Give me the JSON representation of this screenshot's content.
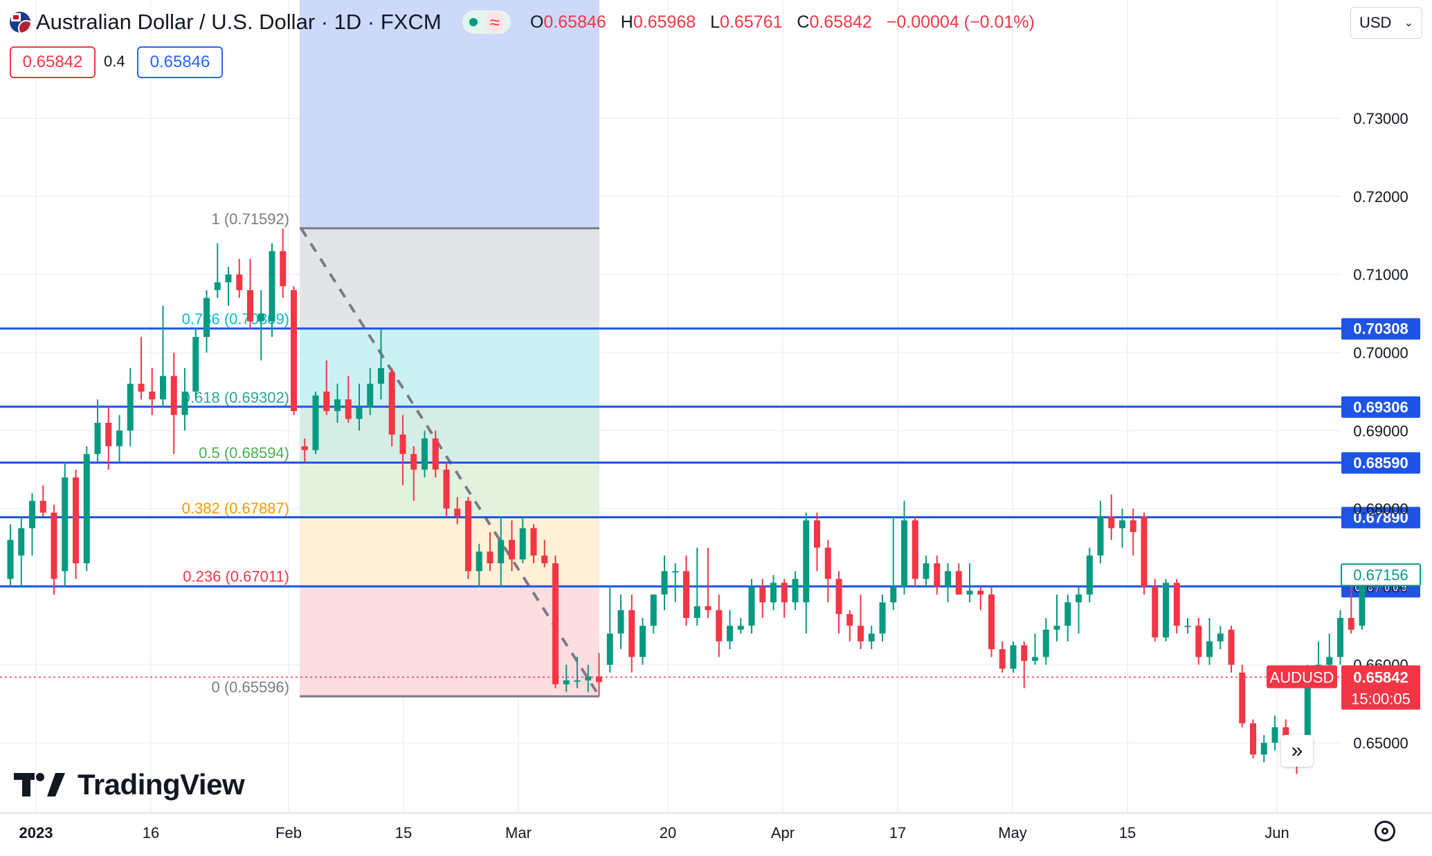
{
  "header": {
    "symbol": "Australian Dollar / U.S. Dollar · 1D · FXCM",
    "ohlc": [
      {
        "k": "O",
        "v": "0.65846"
      },
      {
        "k": "H",
        "v": "0.65968"
      },
      {
        "k": "L",
        "v": "0.65761"
      },
      {
        "k": "C",
        "v": "0.65842"
      }
    ],
    "change": "−0.00004 (−0.01%)",
    "sell_price": "0.65842",
    "spread": "0.4",
    "buy_price": "0.65846",
    "currency": "USD",
    "logo": "TradingView",
    "icons": [
      "flag-icon",
      "dot-icon",
      "wave-icon",
      "chevron-down-icon",
      "double-chevron-right-icon",
      "gear-icon"
    ]
  },
  "colors": {
    "up": "#089981",
    "down": "#f23645",
    "hline": "#1e53e5",
    "fib_top": "#cdd9f9"
  },
  "chart_data": {
    "type": "candlestick",
    "symbol": "AUDUSD",
    "ylim": [
      0.641,
      0.74
    ],
    "y_ticks": [
      "0.65000",
      "0.66000",
      "0.67000",
      "0.68000",
      "0.69000",
      "0.70000",
      "0.71000",
      "0.72000",
      "0.73000"
    ],
    "x_ticks": [
      "2023",
      "16",
      "Feb",
      "15",
      "Mar",
      "20",
      "Apr",
      "17",
      "May",
      "15",
      "Jun"
    ],
    "grid": true,
    "last_price": {
      "label": "AUDUSD",
      "value": "0.65842",
      "countdown": "15:00:05"
    },
    "price_marker": "0.67156",
    "horizontal_lines": [
      "0.70308",
      "0.69306",
      "0.68590",
      "0.67890",
      "0.67005"
    ],
    "fib": {
      "high": 0.71592,
      "low": 0.65596,
      "levels": [
        {
          "label": "1 (0.71592)",
          "value": 0.71592
        },
        {
          "label": "0.786 (0.70309)",
          "value": 0.70309
        },
        {
          "label": "0.618 (0.69302)",
          "value": 0.69302
        },
        {
          "label": "0.5 (0.68594)",
          "value": 0.68594
        },
        {
          "label": "0.382 (0.67887)",
          "value": 0.67887
        },
        {
          "label": "0.236 (0.67011)",
          "value": 0.67011
        },
        {
          "label": "0 (0.65596)",
          "value": 0.65596
        }
      ]
    },
    "candles": [
      {
        "o": 0.671,
        "h": 0.678,
        "l": 0.67,
        "c": 0.676
      },
      {
        "o": 0.674,
        "h": 0.679,
        "l": 0.67,
        "c": 0.6775
      },
      {
        "o": 0.6775,
        "h": 0.682,
        "l": 0.674,
        "c": 0.681
      },
      {
        "o": 0.681,
        "h": 0.683,
        "l": 0.679,
        "c": 0.6795
      },
      {
        "o": 0.6795,
        "h": 0.6805,
        "l": 0.669,
        "c": 0.671
      },
      {
        "o": 0.672,
        "h": 0.686,
        "l": 0.67,
        "c": 0.684
      },
      {
        "o": 0.684,
        "h": 0.685,
        "l": 0.671,
        "c": 0.673
      },
      {
        "o": 0.673,
        "h": 0.688,
        "l": 0.672,
        "c": 0.687
      },
      {
        "o": 0.687,
        "h": 0.694,
        "l": 0.686,
        "c": 0.691
      },
      {
        "o": 0.691,
        "h": 0.693,
        "l": 0.685,
        "c": 0.688
      },
      {
        "o": 0.688,
        "h": 0.692,
        "l": 0.686,
        "c": 0.69
      },
      {
        "o": 0.69,
        "h": 0.698,
        "l": 0.688,
        "c": 0.696
      },
      {
        "o": 0.696,
        "h": 0.702,
        "l": 0.694,
        "c": 0.695
      },
      {
        "o": 0.695,
        "h": 0.698,
        "l": 0.692,
        "c": 0.694
      },
      {
        "o": 0.694,
        "h": 0.706,
        "l": 0.693,
        "c": 0.697
      },
      {
        "o": 0.697,
        "h": 0.7,
        "l": 0.687,
        "c": 0.692
      },
      {
        "o": 0.692,
        "h": 0.698,
        "l": 0.69,
        "c": 0.695
      },
      {
        "o": 0.695,
        "h": 0.703,
        "l": 0.694,
        "c": 0.702
      },
      {
        "o": 0.702,
        "h": 0.708,
        "l": 0.7,
        "c": 0.707
      },
      {
        "o": 0.708,
        "h": 0.714,
        "l": 0.707,
        "c": 0.709
      },
      {
        "o": 0.709,
        "h": 0.711,
        "l": 0.706,
        "c": 0.71
      },
      {
        "o": 0.71,
        "h": 0.712,
        "l": 0.707,
        "c": 0.708
      },
      {
        "o": 0.708,
        "h": 0.712,
        "l": 0.703,
        "c": 0.704
      },
      {
        "o": 0.704,
        "h": 0.708,
        "l": 0.699,
        "c": 0.705
      },
      {
        "o": 0.704,
        "h": 0.714,
        "l": 0.702,
        "c": 0.713
      },
      {
        "o": 0.713,
        "h": 0.7159,
        "l": 0.707,
        "c": 0.7085
      },
      {
        "o": 0.708,
        "h": 0.7085,
        "l": 0.692,
        "c": 0.6925
      },
      {
        "o": 0.688,
        "h": 0.689,
        "l": 0.686,
        "c": 0.6875
      },
      {
        "o": 0.6875,
        "h": 0.695,
        "l": 0.687,
        "c": 0.6945
      },
      {
        "o": 0.695,
        "h": 0.699,
        "l": 0.692,
        "c": 0.6925
      },
      {
        "o": 0.6925,
        "h": 0.696,
        "l": 0.691,
        "c": 0.694
      },
      {
        "o": 0.694,
        "h": 0.697,
        "l": 0.691,
        "c": 0.6915
      },
      {
        "o": 0.6915,
        "h": 0.696,
        "l": 0.69,
        "c": 0.693
      },
      {
        "o": 0.693,
        "h": 0.698,
        "l": 0.692,
        "c": 0.696
      },
      {
        "o": 0.696,
        "h": 0.703,
        "l": 0.694,
        "c": 0.698
      },
      {
        "o": 0.6975,
        "h": 0.698,
        "l": 0.688,
        "c": 0.6895
      },
      {
        "o": 0.6895,
        "h": 0.692,
        "l": 0.683,
        "c": 0.687
      },
      {
        "o": 0.687,
        "h": 0.688,
        "l": 0.681,
        "c": 0.685
      },
      {
        "o": 0.685,
        "h": 0.69,
        "l": 0.684,
        "c": 0.689
      },
      {
        "o": 0.689,
        "h": 0.69,
        "l": 0.684,
        "c": 0.685
      },
      {
        "o": 0.685,
        "h": 0.686,
        "l": 0.679,
        "c": 0.68
      },
      {
        "o": 0.68,
        "h": 0.6815,
        "l": 0.678,
        "c": 0.679
      },
      {
        "o": 0.681,
        "h": 0.6815,
        "l": 0.671,
        "c": 0.672
      },
      {
        "o": 0.672,
        "h": 0.6755,
        "l": 0.67,
        "c": 0.6745
      },
      {
        "o": 0.6745,
        "h": 0.677,
        "l": 0.672,
        "c": 0.673
      },
      {
        "o": 0.673,
        "h": 0.679,
        "l": 0.67,
        "c": 0.676
      },
      {
        "o": 0.676,
        "h": 0.6785,
        "l": 0.672,
        "c": 0.6735
      },
      {
        "o": 0.6735,
        "h": 0.679,
        "l": 0.673,
        "c": 0.6775
      },
      {
        "o": 0.6775,
        "h": 0.678,
        "l": 0.673,
        "c": 0.674
      },
      {
        "o": 0.674,
        "h": 0.676,
        "l": 0.6725,
        "c": 0.673
      },
      {
        "o": 0.673,
        "h": 0.674,
        "l": 0.657,
        "c": 0.6575
      },
      {
        "o": 0.6575,
        "h": 0.66,
        "l": 0.6565,
        "c": 0.658
      },
      {
        "o": 0.658,
        "h": 0.661,
        "l": 0.657,
        "c": 0.658
      },
      {
        "o": 0.658,
        "h": 0.66,
        "l": 0.6565,
        "c": 0.6585
      },
      {
        "o": 0.6585,
        "h": 0.6615,
        "l": 0.656,
        "c": 0.6578
      },
      {
        "o": 0.66,
        "h": 0.67,
        "l": 0.659,
        "c": 0.664
      },
      {
        "o": 0.664,
        "h": 0.669,
        "l": 0.662,
        "c": 0.667
      },
      {
        "o": 0.667,
        "h": 0.669,
        "l": 0.659,
        "c": 0.661
      },
      {
        "o": 0.661,
        "h": 0.666,
        "l": 0.66,
        "c": 0.665
      },
      {
        "o": 0.665,
        "h": 0.669,
        "l": 0.664,
        "c": 0.669
      },
      {
        "o": 0.669,
        "h": 0.674,
        "l": 0.667,
        "c": 0.672
      },
      {
        "o": 0.672,
        "h": 0.673,
        "l": 0.668,
        "c": 0.672
      },
      {
        "o": 0.672,
        "h": 0.674,
        "l": 0.665,
        "c": 0.666
      },
      {
        "o": 0.666,
        "h": 0.675,
        "l": 0.665,
        "c": 0.6675
      },
      {
        "o": 0.6675,
        "h": 0.675,
        "l": 0.666,
        "c": 0.667
      },
      {
        "o": 0.667,
        "h": 0.669,
        "l": 0.661,
        "c": 0.663
      },
      {
        "o": 0.663,
        "h": 0.667,
        "l": 0.662,
        "c": 0.665
      },
      {
        "o": 0.6645,
        "h": 0.666,
        "l": 0.664,
        "c": 0.665
      },
      {
        "o": 0.665,
        "h": 0.671,
        "l": 0.664,
        "c": 0.67
      },
      {
        "o": 0.67,
        "h": 0.671,
        "l": 0.666,
        "c": 0.668
      },
      {
        "o": 0.668,
        "h": 0.6715,
        "l": 0.667,
        "c": 0.6705
      },
      {
        "o": 0.6705,
        "h": 0.671,
        "l": 0.666,
        "c": 0.668
      },
      {
        "o": 0.668,
        "h": 0.672,
        "l": 0.667,
        "c": 0.671
      },
      {
        "o": 0.668,
        "h": 0.6795,
        "l": 0.664,
        "c": 0.6785
      },
      {
        "o": 0.6785,
        "h": 0.6795,
        "l": 0.672,
        "c": 0.675
      },
      {
        "o": 0.675,
        "h": 0.676,
        "l": 0.668,
        "c": 0.671
      },
      {
        "o": 0.671,
        "h": 0.672,
        "l": 0.664,
        "c": 0.6665
      },
      {
        "o": 0.6665,
        "h": 0.667,
        "l": 0.663,
        "c": 0.665
      },
      {
        "o": 0.665,
        "h": 0.669,
        "l": 0.662,
        "c": 0.663
      },
      {
        "o": 0.663,
        "h": 0.665,
        "l": 0.662,
        "c": 0.664
      },
      {
        "o": 0.664,
        "h": 0.669,
        "l": 0.663,
        "c": 0.668
      },
      {
        "o": 0.668,
        "h": 0.679,
        "l": 0.667,
        "c": 0.67
      },
      {
        "o": 0.67,
        "h": 0.681,
        "l": 0.669,
        "c": 0.6785
      },
      {
        "o": 0.6785,
        "h": 0.679,
        "l": 0.67,
        "c": 0.671
      },
      {
        "o": 0.671,
        "h": 0.674,
        "l": 0.67,
        "c": 0.673
      },
      {
        "o": 0.673,
        "h": 0.674,
        "l": 0.669,
        "c": 0.67
      },
      {
        "o": 0.67,
        "h": 0.673,
        "l": 0.668,
        "c": 0.672
      },
      {
        "o": 0.672,
        "h": 0.673,
        "l": 0.669,
        "c": 0.669
      },
      {
        "o": 0.669,
        "h": 0.673,
        "l": 0.668,
        "c": 0.6695
      },
      {
        "o": 0.6695,
        "h": 0.67,
        "l": 0.667,
        "c": 0.669
      },
      {
        "o": 0.669,
        "h": 0.67,
        "l": 0.661,
        "c": 0.662
      },
      {
        "o": 0.662,
        "h": 0.663,
        "l": 0.659,
        "c": 0.6595
      },
      {
        "o": 0.6595,
        "h": 0.663,
        "l": 0.659,
        "c": 0.6625
      },
      {
        "o": 0.6625,
        "h": 0.663,
        "l": 0.657,
        "c": 0.6605
      },
      {
        "o": 0.6605,
        "h": 0.664,
        "l": 0.66,
        "c": 0.661
      },
      {
        "o": 0.661,
        "h": 0.666,
        "l": 0.66,
        "c": 0.6645
      },
      {
        "o": 0.6645,
        "h": 0.669,
        "l": 0.663,
        "c": 0.665
      },
      {
        "o": 0.665,
        "h": 0.669,
        "l": 0.663,
        "c": 0.668
      },
      {
        "o": 0.668,
        "h": 0.67,
        "l": 0.664,
        "c": 0.669
      },
      {
        "o": 0.669,
        "h": 0.675,
        "l": 0.668,
        "c": 0.674
      },
      {
        "o": 0.674,
        "h": 0.681,
        "l": 0.673,
        "c": 0.679
      },
      {
        "o": 0.679,
        "h": 0.6818,
        "l": 0.676,
        "c": 0.6775
      },
      {
        "o": 0.6775,
        "h": 0.68,
        "l": 0.675,
        "c": 0.6785
      },
      {
        "o": 0.6785,
        "h": 0.68,
        "l": 0.674,
        "c": 0.677
      },
      {
        "o": 0.679,
        "h": 0.6795,
        "l": 0.669,
        "c": 0.67
      },
      {
        "o": 0.67,
        "h": 0.671,
        "l": 0.663,
        "c": 0.6635
      },
      {
        "o": 0.6635,
        "h": 0.671,
        "l": 0.663,
        "c": 0.6705
      },
      {
        "o": 0.6705,
        "h": 0.671,
        "l": 0.664,
        "c": 0.665
      },
      {
        "o": 0.665,
        "h": 0.666,
        "l": 0.664,
        "c": 0.665
      },
      {
        "o": 0.665,
        "h": 0.666,
        "l": 0.66,
        "c": 0.661
      },
      {
        "o": 0.661,
        "h": 0.666,
        "l": 0.66,
        "c": 0.663
      },
      {
        "o": 0.663,
        "h": 0.665,
        "l": 0.662,
        "c": 0.664
      },
      {
        "o": 0.6645,
        "h": 0.665,
        "l": 0.659,
        "c": 0.66
      },
      {
        "o": 0.659,
        "h": 0.66,
        "l": 0.652,
        "c": 0.6525
      },
      {
        "o": 0.6525,
        "h": 0.653,
        "l": 0.648,
        "c": 0.6485
      },
      {
        "o": 0.6485,
        "h": 0.651,
        "l": 0.6475,
        "c": 0.65
      },
      {
        "o": 0.65,
        "h": 0.6535,
        "l": 0.649,
        "c": 0.652
      },
      {
        "o": 0.652,
        "h": 0.653,
        "l": 0.65,
        "c": 0.6505
      },
      {
        "o": 0.6505,
        "h": 0.651,
        "l": 0.646,
        "c": 0.649
      },
      {
        "o": 0.649,
        "h": 0.66,
        "l": 0.6485,
        "c": 0.659
      },
      {
        "o": 0.659,
        "h": 0.663,
        "l": 0.658,
        "c": 0.66
      },
      {
        "o": 0.66,
        "h": 0.664,
        "l": 0.659,
        "c": 0.661
      },
      {
        "o": 0.661,
        "h": 0.667,
        "l": 0.66,
        "c": 0.666
      },
      {
        "o": 0.666,
        "h": 0.671,
        "l": 0.664,
        "c": 0.6645
      },
      {
        "o": 0.665,
        "h": 0.672,
        "l": 0.6645,
        "c": 0.6715
      }
    ]
  }
}
